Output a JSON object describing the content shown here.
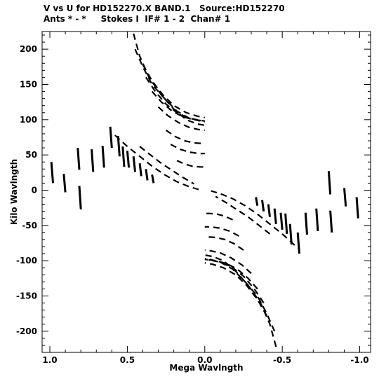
{
  "header": {
    "line1": "V vs U for HD152270.X BAND.1   Source:HD152270",
    "line2": "Ants * - *     Stokes I  IF# 1 - 2  Chan# 1"
  },
  "chart_data": {
    "type": "scatter",
    "title": "V vs U for HD152270.X BAND.1   Source:HD152270",
    "subtitle": "Ants * - *     Stokes I  IF# 1 - 2  Chan# 1",
    "xlabel": "Mega Wavlngth",
    "ylabel": "Kilo Wavlngth",
    "xlim": [
      1.05,
      -1.07
    ],
    "ylim": [
      -230,
      225
    ],
    "x_axis_reversed": true,
    "xticks": [
      1.0,
      0.5,
      0.0,
      -0.5,
      -1.0
    ],
    "xtick_labels": [
      "1.0",
      "0.5",
      "0.0",
      "-0.5",
      "-1.0"
    ],
    "yticks": [
      200,
      150,
      100,
      50,
      0,
      -50,
      -100,
      -150,
      -200
    ],
    "ytick_labels": [
      "200",
      "150",
      "100",
      "50",
      "0",
      "-50",
      "-100",
      "-150",
      "-200"
    ],
    "grid": false,
    "legend": "none",
    "series": [
      {
        "description": "uv tracks (each track drawn together with its conjugate point -u,-v)",
        "tracks": [
          [
            [
              0.99,
              40
            ],
            [
              0.98,
              10
            ]
          ],
          [
            [
              0.91,
              23
            ],
            [
              0.9,
              -3
            ]
          ],
          [
            [
              0.82,
              60
            ],
            [
              0.81,
              29
            ]
          ],
          [
            [
              0.81,
              6
            ],
            [
              0.8,
              -27
            ]
          ],
          [
            [
              0.73,
              58
            ],
            [
              0.72,
              26
            ]
          ],
          [
            [
              0.66,
              63
            ],
            [
              0.65,
              32
            ]
          ],
          [
            [
              0.61,
              90
            ],
            [
              0.6,
              60
            ]
          ],
          [
            [
              0.56,
              77
            ],
            [
              0.55,
              48
            ]
          ],
          [
            [
              0.53,
              62
            ],
            [
              0.52,
              33
            ]
          ],
          [
            [
              0.5,
              56
            ],
            [
              0.49,
              32
            ]
          ],
          [
            [
              0.46,
              48
            ],
            [
              0.45,
              26
            ]
          ],
          [
            [
              0.42,
              38
            ],
            [
              0.41,
              20
            ]
          ],
          [
            [
              0.38,
              30
            ],
            [
              0.37,
              14
            ]
          ],
          [
            [
              0.34,
              22
            ],
            [
              0.33,
              10
            ]
          ],
          [
            [
              0.46,
              222
            ],
            [
              0.42,
              190
            ],
            [
              0.36,
              160
            ],
            [
              0.28,
              135
            ],
            [
              0.2,
              115
            ],
            [
              0.12,
              100
            ],
            [
              0.05,
              94
            ],
            [
              0.0,
              92
            ]
          ],
          [
            [
              0.45,
              200
            ],
            [
              0.4,
              175
            ],
            [
              0.34,
              150
            ],
            [
              0.26,
              130
            ],
            [
              0.18,
              112
            ],
            [
              0.1,
              102
            ],
            [
              0.03,
              98
            ],
            [
              0.0,
              97
            ]
          ],
          [
            [
              0.4,
              178
            ],
            [
              0.34,
              155
            ],
            [
              0.27,
              135
            ],
            [
              0.2,
              120
            ],
            [
              0.12,
              110
            ],
            [
              0.05,
              105
            ],
            [
              0.0,
              103
            ]
          ],
          [
            [
              0.38,
              160
            ],
            [
              0.32,
              140
            ],
            [
              0.25,
              122
            ],
            [
              0.18,
              110
            ],
            [
              0.1,
              102
            ],
            [
              0.03,
              99
            ],
            [
              0.0,
              98
            ]
          ],
          [
            [
              0.34,
              140
            ],
            [
              0.28,
              125
            ],
            [
              0.21,
              112
            ],
            [
              0.14,
              104
            ],
            [
              0.07,
              100
            ],
            [
              0.0,
              98
            ]
          ],
          [
            [
              0.3,
              118
            ],
            [
              0.24,
              106
            ],
            [
              0.17,
              96
            ],
            [
              0.1,
              89
            ],
            [
              0.04,
              86
            ],
            [
              0.0,
              85
            ]
          ],
          [
            [
              0.25,
              85
            ],
            [
              0.19,
              76
            ],
            [
              0.13,
              70
            ],
            [
              0.07,
              67
            ],
            [
              0.0,
              66
            ]
          ],
          [
            [
              0.22,
              65
            ],
            [
              0.16,
              58
            ],
            [
              0.1,
              54
            ],
            [
              0.04,
              52
            ],
            [
              0.0,
              52
            ]
          ],
          [
            [
              0.18,
              42
            ],
            [
              0.13,
              37
            ],
            [
              0.08,
              34
            ],
            [
              0.03,
              33
            ],
            [
              0.0,
              33
            ]
          ],
          [
            [
              0.58,
              78
            ],
            [
              0.5,
              62
            ],
            [
              0.42,
              48
            ],
            [
              0.34,
              34
            ],
            [
              0.26,
              22
            ],
            [
              0.18,
              12
            ],
            [
              0.1,
              5
            ],
            [
              0.04,
              1
            ]
          ],
          [
            [
              0.42,
              62
            ],
            [
              0.35,
              50
            ],
            [
              0.28,
              38
            ],
            [
              0.21,
              28
            ],
            [
              0.14,
              18
            ],
            [
              0.07,
              9
            ]
          ]
        ]
      }
    ]
  }
}
